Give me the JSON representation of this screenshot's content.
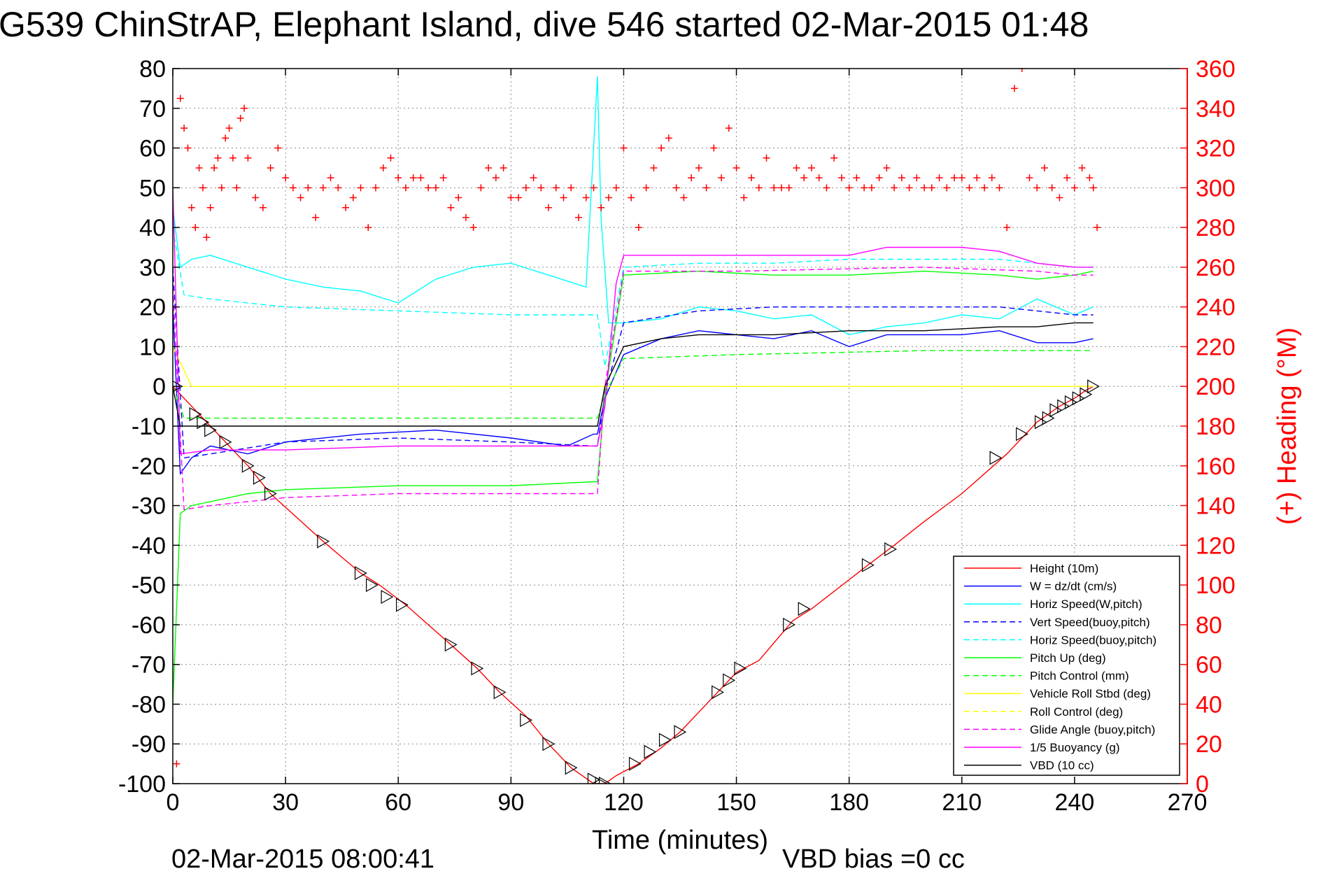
{
  "chart_data": {
    "type": "line",
    "title": "G539 ChinStrAP, Elephant Island, dive 546 started 02-Mar-2015 01:48",
    "xlabel": "Time (minutes)",
    "ylabel_right": "(+) Heading (°M)",
    "timestamp": "02-Mar-2015 08:00:41",
    "footnote": "VBD bias =0 cc",
    "xlim": [
      0,
      270
    ],
    "ylim": [
      -100,
      80
    ],
    "ylim_right": [
      0,
      360
    ],
    "xticks": [
      "0",
      "30",
      "60",
      "90",
      "120",
      "150",
      "180",
      "210",
      "240",
      "270"
    ],
    "yticks_left": [
      "80",
      "70",
      "60",
      "50",
      "40",
      "30",
      "20",
      "10",
      "0",
      "-10",
      "-20",
      "-30",
      "-40",
      "-50",
      "-60",
      "-70",
      "-80",
      "-90",
      "-100"
    ],
    "yticks_right": [
      "360",
      "340",
      "320",
      "300",
      "280",
      "260",
      "240",
      "220",
      "200",
      "180",
      "160",
      "140",
      "120",
      "100",
      "80",
      "60",
      "40",
      "20",
      "0"
    ],
    "grid": true,
    "legend_position": "bottom-right",
    "series": [
      {
        "name": "Height (10m)",
        "color": "#ff0000",
        "style": "solid",
        "x": [
          0,
          10,
          20,
          26,
          40,
          50,
          55,
          62,
          74,
          81,
          87,
          94,
          100,
          106,
          112,
          115,
          118,
          124,
          130,
          135,
          145,
          150,
          156,
          165,
          170,
          185,
          192,
          200,
          210,
          222,
          230,
          236,
          240,
          243,
          245
        ],
        "y": [
          0,
          -10,
          -20,
          -27,
          -39,
          -47,
          -50,
          -55,
          -65,
          -71,
          -77,
          -83,
          -90,
          -96,
          -100,
          -100,
          -98,
          -95,
          -91,
          -87,
          -77,
          -72,
          -69,
          -59,
          -56,
          -45,
          -40,
          -34,
          -27,
          -17,
          -9,
          -5,
          -3,
          -1,
          0
        ]
      },
      {
        "name": "W = dz/dt (cm/s)",
        "color": "#0000ff",
        "style": "solid",
        "x": [
          0,
          2,
          5,
          10,
          20,
          30,
          50,
          70,
          90,
          105,
          112,
          113,
          115,
          120,
          130,
          140,
          150,
          160,
          170,
          180,
          190,
          200,
          210,
          220,
          230,
          240,
          245
        ],
        "y": [
          20,
          -22,
          -18,
          -15,
          -17,
          -14,
          -12,
          -11,
          -13,
          -15,
          -12,
          -12,
          -3,
          8,
          12,
          14,
          13,
          12,
          14,
          10,
          13,
          13,
          13,
          14,
          11,
          11,
          12
        ]
      },
      {
        "name": "Horiz Speed(W,pitch)",
        "color": "#00ffff",
        "style": "solid",
        "x": [
          0,
          2,
          5,
          10,
          20,
          30,
          40,
          50,
          60,
          70,
          80,
          90,
          100,
          110,
          113,
          114,
          116,
          120,
          130,
          140,
          150,
          160,
          170,
          180,
          190,
          200,
          210,
          220,
          230,
          240,
          245
        ],
        "y": [
          45,
          30,
          32,
          33,
          30,
          27,
          25,
          24,
          21,
          27,
          30,
          31,
          28,
          25,
          78,
          42,
          16,
          16,
          17,
          20,
          19,
          17,
          18,
          13,
          15,
          16,
          18,
          17,
          22,
          18,
          20
        ]
      },
      {
        "name": "Vert Speed(buoy,pitch)",
        "color": "#0000ff",
        "style": "dashed",
        "x": [
          0,
          3,
          10,
          30,
          60,
          90,
          112,
          113,
          115,
          120,
          140,
          160,
          180,
          200,
          220,
          240,
          245
        ],
        "y": [
          30,
          -18,
          -17,
          -14,
          -13,
          -14,
          -15,
          -15,
          -2,
          16,
          19,
          20,
          20,
          20,
          20,
          18,
          18
        ]
      },
      {
        "name": "Horiz Speed(buoy,pitch)",
        "color": "#00ffff",
        "style": "dashed",
        "x": [
          0,
          3,
          10,
          30,
          60,
          90,
          112,
          113,
          115,
          120,
          140,
          160,
          180,
          200,
          220,
          240,
          245
        ],
        "y": [
          40,
          23,
          22,
          20,
          19,
          18,
          18,
          18,
          5,
          30,
          31,
          31,
          32,
          32,
          32,
          30,
          30
        ]
      },
      {
        "name": "Pitch Up (deg)",
        "color": "#00ff00",
        "style": "solid",
        "x": [
          0,
          2,
          5,
          10,
          20,
          30,
          60,
          90,
          112,
          113,
          115,
          120,
          140,
          160,
          180,
          200,
          220,
          230,
          240,
          245
        ],
        "y": [
          -80,
          -32,
          -30,
          -29,
          -27,
          -26,
          -25,
          -25,
          -24,
          -24,
          -2,
          28,
          29,
          28,
          28,
          29,
          28,
          27,
          28,
          29
        ]
      },
      {
        "name": "Pitch Control (mm)",
        "color": "#00ff00",
        "style": "dashed",
        "x": [
          0,
          3,
          30,
          60,
          90,
          112,
          113,
          115,
          120,
          150,
          200,
          245
        ],
        "y": [
          0,
          -8,
          -8,
          -8,
          -8,
          -8,
          -8,
          -2,
          7,
          8,
          9,
          9
        ]
      },
      {
        "name": "Vehicle Roll Stbd (deg)",
        "color": "#ffff00",
        "style": "solid",
        "x": [
          0,
          5,
          10,
          20,
          40,
          60,
          80,
          100,
          113,
          115,
          130,
          160,
          190,
          220,
          240,
          245
        ],
        "y": [
          10,
          0,
          0,
          0,
          0,
          0,
          0,
          0,
          0,
          0,
          0,
          0,
          0,
          0,
          0,
          0
        ]
      },
      {
        "name": "Roll Control (deg)",
        "color": "#ffff00",
        "style": "dashed",
        "x": [
          0,
          30,
          60,
          90,
          113,
          120,
          150,
          180,
          210,
          245
        ],
        "y": [
          0,
          0,
          0,
          0,
          0,
          0,
          0,
          0,
          0,
          0
        ]
      },
      {
        "name": "Glide Angle (buoy,pitch)",
        "color": "#ff00ff",
        "style": "dashed",
        "x": [
          0,
          3,
          10,
          30,
          60,
          90,
          112,
          113,
          115,
          120,
          150,
          200,
          230,
          240,
          245
        ],
        "y": [
          25,
          -31,
          -30,
          -28,
          -27,
          -27,
          -27,
          -27,
          0,
          29,
          29,
          30,
          29,
          28,
          28
        ]
      },
      {
        "name": "1/5 Buoyancy (g)",
        "color": "#ff00ff",
        "style": "solid",
        "x": [
          0,
          2,
          10,
          30,
          60,
          90,
          112,
          113,
          115,
          118,
          120,
          150,
          180,
          190,
          200,
          210,
          220,
          230,
          240,
          245
        ],
        "y": [
          50,
          -17,
          -16,
          -16,
          -15,
          -15,
          -15,
          -15,
          -5,
          26,
          33,
          33,
          33,
          35,
          35,
          35,
          34,
          31,
          30,
          30
        ]
      },
      {
        "name": "VBD (10 cc)",
        "color": "#000000",
        "style": "solid",
        "x": [
          0,
          2,
          10,
          30,
          60,
          90,
          112,
          113,
          115,
          120,
          130,
          140,
          160,
          180,
          200,
          220,
          230,
          240,
          245
        ],
        "y": [
          0,
          -10,
          -10,
          -10,
          -10,
          -10,
          -10,
          -10,
          0,
          10,
          12,
          13,
          13,
          14,
          14,
          15,
          15,
          16,
          16
        ]
      }
    ],
    "heading": {
      "name": "Heading (+)",
      "color": "#ff0000",
      "marker": "+",
      "axis": "right",
      "x": [
        1,
        2,
        3,
        4,
        5,
        6,
        7,
        8,
        9,
        10,
        11,
        12,
        13,
        14,
        15,
        16,
        17,
        18,
        19,
        20,
        22,
        24,
        26,
        28,
        30,
        32,
        34,
        36,
        38,
        40,
        42,
        44,
        46,
        48,
        50,
        52,
        54,
        56,
        58,
        60,
        62,
        64,
        66,
        68,
        70,
        72,
        74,
        76,
        78,
        80,
        82,
        84,
        86,
        88,
        90,
        92,
        94,
        96,
        98,
        100,
        102,
        104,
        106,
        108,
        110,
        112,
        114,
        116,
        118,
        120,
        122,
        124,
        126,
        128,
        130,
        132,
        134,
        136,
        138,
        140,
        142,
        144,
        146,
        148,
        150,
        152,
        154,
        156,
        158,
        160,
        162,
        164,
        166,
        168,
        170,
        172,
        174,
        176,
        178,
        180,
        182,
        184,
        186,
        188,
        190,
        192,
        194,
        196,
        198,
        200,
        202,
        204,
        206,
        208,
        210,
        212,
        214,
        216,
        218,
        220,
        222,
        224,
        226,
        228,
        230,
        232,
        234,
        236,
        238,
        240,
        242,
        244,
        245,
        246
      ],
      "y": [
        10,
        345,
        330,
        320,
        290,
        280,
        310,
        300,
        275,
        290,
        310,
        315,
        300,
        325,
        330,
        315,
        300,
        335,
        340,
        315,
        295,
        290,
        310,
        320,
        305,
        300,
        295,
        300,
        285,
        300,
        305,
        300,
        290,
        295,
        300,
        280,
        300,
        310,
        315,
        305,
        300,
        305,
        305,
        300,
        300,
        305,
        290,
        295,
        285,
        280,
        300,
        310,
        305,
        310,
        295,
        295,
        300,
        305,
        300,
        290,
        300,
        295,
        300,
        285,
        295,
        300,
        290,
        295,
        300,
        320,
        295,
        280,
        300,
        310,
        320,
        325,
        300,
        295,
        305,
        310,
        300,
        320,
        305,
        330,
        310,
        295,
        305,
        300,
        315,
        300,
        300,
        300,
        310,
        305,
        310,
        305,
        300,
        315,
        305,
        300,
        305,
        300,
        300,
        305,
        310,
        300,
        305,
        300,
        305,
        300,
        300,
        305,
        300,
        305,
        305,
        300,
        305,
        300,
        305,
        300,
        280,
        350,
        360,
        305,
        300,
        310,
        300,
        295,
        305,
        300,
        310,
        305,
        300,
        280
      ]
    },
    "markers": {
      "name": "triangle markers",
      "color": "#000000",
      "x": [
        1,
        6,
        8,
        10,
        14,
        20,
        23,
        26,
        40,
        50,
        53,
        57,
        61,
        74,
        81,
        87,
        94,
        100,
        106,
        112,
        114,
        115,
        123,
        127,
        131,
        135,
        145,
        148,
        151,
        164,
        168,
        185,
        191,
        219,
        226,
        231,
        233,
        235,
        237,
        239,
        241,
        243,
        245
      ],
      "y": [
        0,
        -7,
        -9,
        -11,
        -14,
        -20,
        -23,
        -27,
        -39,
        -47,
        -50,
        -53,
        -55,
        -65,
        -71,
        -77,
        -84,
        -90,
        -96,
        -99,
        -100,
        -100,
        -95,
        -92,
        -89,
        -87,
        -77,
        -74,
        -71,
        -60,
        -56,
        -45,
        -41,
        -18,
        -12,
        -9,
        -8,
        -6,
        -5,
        -4,
        -3,
        -2,
        0
      ]
    }
  }
}
